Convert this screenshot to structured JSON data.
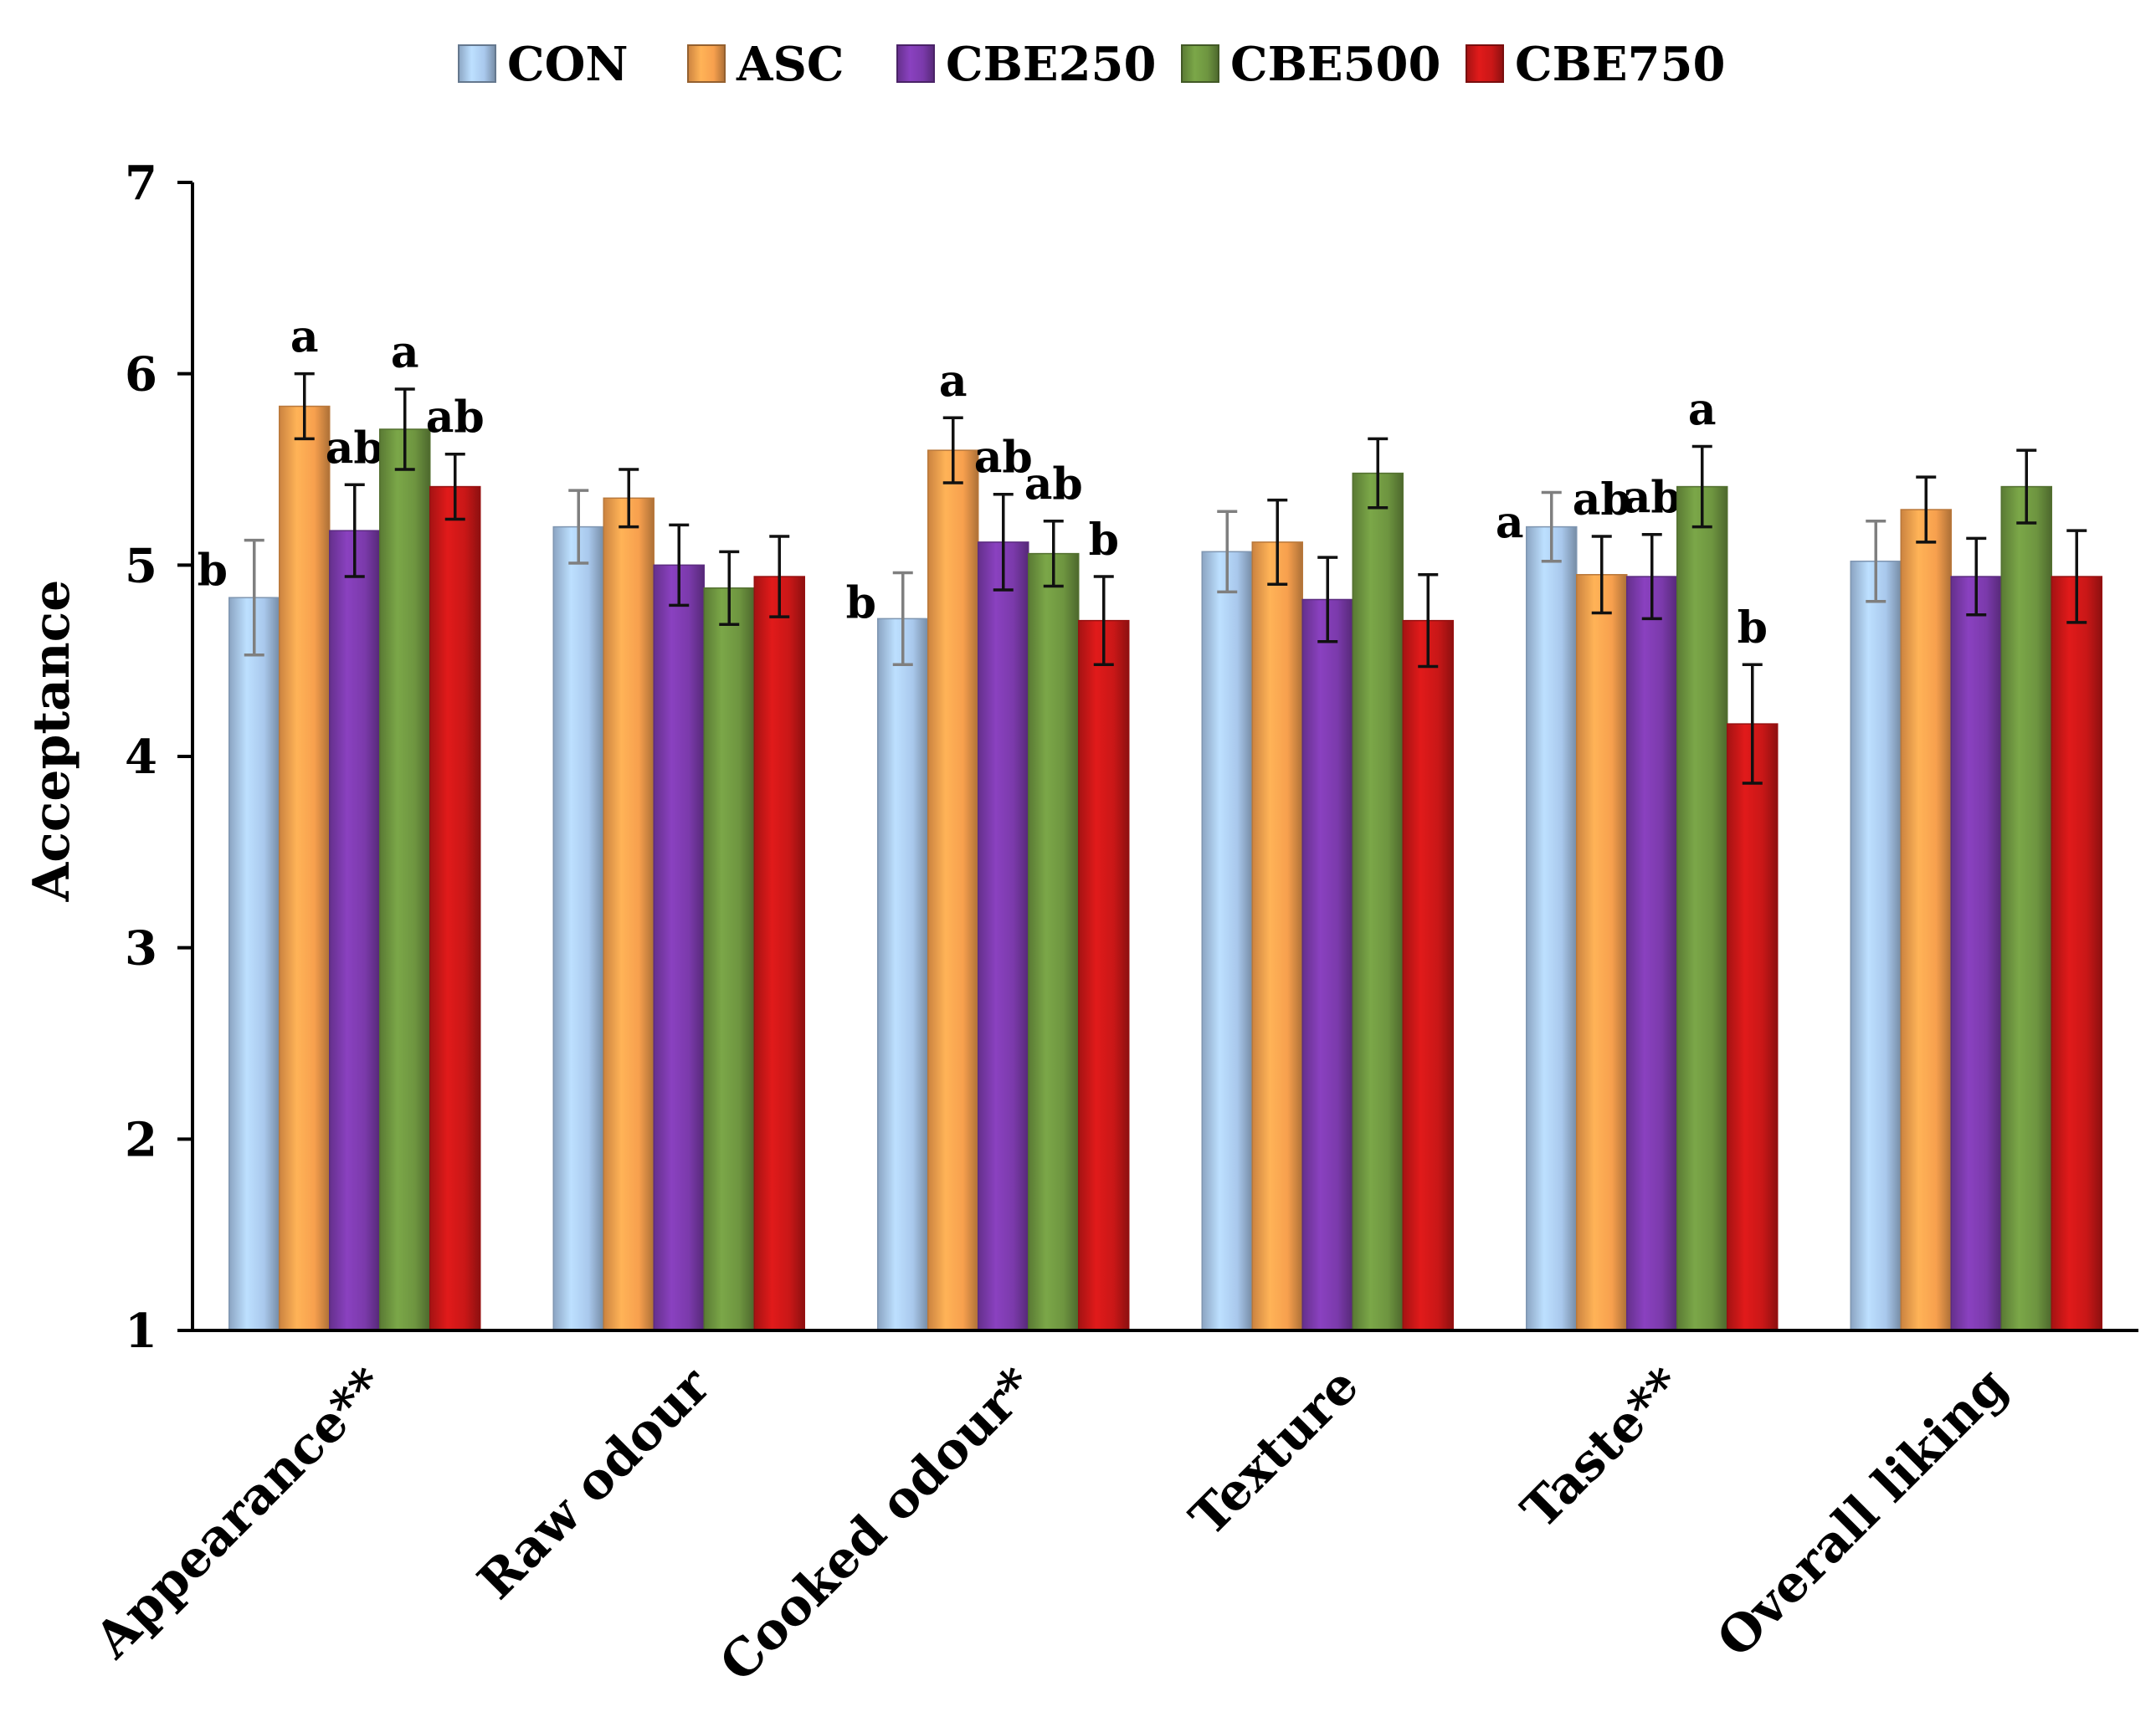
{
  "chart_data": {
    "type": "bar",
    "title": "",
    "xlabel": "",
    "ylabel": "Acceptance",
    "ylim": [
      1,
      7
    ],
    "yticks": [
      1,
      2,
      3,
      4,
      5,
      6,
      7
    ],
    "grid": false,
    "legend_position": "top",
    "categories": [
      "Appearance**",
      "Raw odour",
      "Cooked odour*",
      "Texture",
      "Taste**",
      "Overall liking"
    ],
    "series": [
      {
        "name": "CON",
        "color": "#a9c8ec",
        "values": [
          4.83,
          5.2,
          4.72,
          5.07,
          5.2,
          5.02
        ],
        "errors": [
          0.3,
          0.19,
          0.24,
          0.21,
          0.18,
          0.21
        ],
        "labels": [
          "b",
          "",
          "b",
          "",
          "a",
          ""
        ]
      },
      {
        "name": "ASC",
        "color": "#f7a04e",
        "values": [
          5.83,
          5.35,
          5.6,
          5.12,
          4.95,
          5.29
        ],
        "errors": [
          0.17,
          0.15,
          0.17,
          0.22,
          0.2,
          0.17
        ],
        "labels": [
          "a",
          "",
          "a",
          "",
          "ab",
          ""
        ]
      },
      {
        "name": "CBE250",
        "color": "#7b3aab",
        "values": [
          5.18,
          5.0,
          5.12,
          4.82,
          4.94,
          4.94
        ],
        "errors": [
          0.24,
          0.21,
          0.25,
          0.22,
          0.22,
          0.2
        ],
        "labels": [
          "ab",
          "",
          "ab",
          "",
          "ab",
          ""
        ]
      },
      {
        "name": "CBE500",
        "color": "#6e9540",
        "values": [
          5.71,
          4.88,
          5.06,
          5.48,
          5.41,
          5.41
        ],
        "errors": [
          0.21,
          0.19,
          0.17,
          0.18,
          0.21,
          0.19
        ],
        "labels": [
          "a",
          "",
          "ab",
          "",
          "a",
          ""
        ]
      },
      {
        "name": "CBE750",
        "color": "#c91717",
        "values": [
          5.41,
          4.94,
          4.71,
          4.71,
          4.17,
          4.94
        ],
        "errors": [
          0.17,
          0.21,
          0.23,
          0.24,
          0.31,
          0.24
        ],
        "labels": [
          "ab",
          "",
          "b",
          "",
          "b",
          ""
        ]
      }
    ]
  }
}
